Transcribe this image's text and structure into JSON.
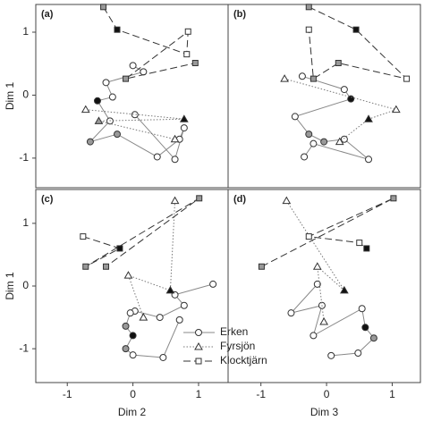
{
  "chart_data": [
    {
      "type": "line",
      "label": "(a)",
      "ylabel": "Dim 1",
      "xlim": [
        -1.48,
        1.45
      ],
      "ylim": [
        -1.47,
        1.44
      ],
      "yticks": [
        -1,
        0,
        1
      ],
      "series": [
        {
          "color": "#888888",
          "marker": "circle",
          "dash": "solid",
          "x": [
            0,
            0.16,
            -0.41,
            -0.31,
            -0.54,
            -0.35,
            -0.65,
            -0.24,
            0.37,
            0.71,
            0.78,
            0.64,
            0.03
          ],
          "values": [
            0.47,
            0.37,
            0.2,
            -0.03,
            -0.09,
            -0.41,
            -0.74,
            -0.62,
            -0.98,
            -0.7,
            -0.52,
            -1.02,
            -0.31
          ],
          "point_fills": [
            "#fff",
            "#fff",
            "#fff",
            "#fff",
            "#111",
            "#fff",
            "#999",
            "#999",
            "#fff",
            "#fff",
            "#fff",
            "#fff",
            "#fff"
          ]
        },
        {
          "color": "#777777",
          "marker": "triangle",
          "dash": "dotted",
          "x": [
            -0.72,
            0.78,
            -0.52,
            0.64
          ],
          "values": [
            -0.23,
            -0.38,
            -0.41,
            -0.7
          ],
          "point_fills": [
            "#fff",
            "#111",
            "#999",
            "#fff"
          ]
        },
        {
          "color": "#333333",
          "marker": "square",
          "dash": "dashed",
          "x": [
            -0.45,
            -0.24,
            0.82,
            0.84,
            -0.11,
            0.95
          ],
          "values": [
            1.4,
            1.04,
            0.65,
            1.01,
            0.26,
            0.51
          ],
          "point_fills": [
            "#999",
            "#111",
            "#fff",
            "#fff",
            "#999",
            "#999"
          ]
        }
      ]
    },
    {
      "type": "line",
      "label": "(b)",
      "xlim": [
        -1.5,
        1.43
      ],
      "ylim": [
        -1.47,
        1.44
      ],
      "series": [
        {
          "color": "#888888",
          "marker": "circle",
          "dash": "solid",
          "x": [
            -0.37,
            0.27,
            0.37,
            -0.48,
            -0.27,
            -0.04,
            0.27,
            0.64,
            -0.2,
            -0.34
          ],
          "values": [
            0.3,
            0.09,
            -0.06,
            -0.34,
            -0.62,
            -0.74,
            -0.7,
            -1.02,
            -0.77,
            -0.98
          ],
          "point_fills": [
            "#fff",
            "#fff",
            "#111",
            "#fff",
            "#999",
            "#999",
            "#fff",
            "#fff",
            "#fff",
            "#fff"
          ]
        },
        {
          "color": "#777777",
          "marker": "triangle",
          "dash": "dotted",
          "x": [
            -0.64,
            1.06,
            0.64,
            0.2
          ],
          "values": [
            0.26,
            -0.23,
            -0.38,
            -0.74
          ],
          "point_fills": [
            "#fff",
            "#fff",
            "#111",
            "#fff"
          ]
        },
        {
          "color": "#333333",
          "marker": "square",
          "dash": "dashed",
          "x": [
            -0.27,
            0.45,
            1.22,
            0.18,
            -0.2,
            -0.27
          ],
          "values": [
            1.4,
            1.04,
            0.26,
            0.51,
            0.26,
            1.04
          ],
          "point_fills": [
            "#999",
            "#111",
            "#fff",
            "#999",
            "#999",
            "#fff"
          ]
        }
      ]
    },
    {
      "type": "line",
      "label": "(c)",
      "ylabel": "Dim 1",
      "xlabel": "Dim 2",
      "xlim": [
        -1.48,
        1.45
      ],
      "ylim": [
        -1.54,
        1.54
      ],
      "xticks": [
        -1,
        0,
        1
      ],
      "yticks": [
        -1,
        0,
        1
      ],
      "series": [
        {
          "name": "Erken",
          "color": "#888888",
          "marker": "circle",
          "dash": "solid",
          "x": [
            1.22,
            0.64,
            0.78,
            0.41,
            0.03,
            -0.04,
            -0.11,
            0,
            -0.11,
            0,
            0.46,
            0.71
          ],
          "values": [
            0.03,
            -0.14,
            -0.31,
            -0.5,
            -0.4,
            -0.43,
            -0.64,
            -0.79,
            -1.0,
            -1.1,
            -1.14,
            -0.54
          ],
          "point_fills": [
            "#fff",
            "#fff",
            "#fff",
            "#fff",
            "#fff",
            "#fff",
            "#999",
            "#111",
            "#999",
            "#fff",
            "#fff",
            "#fff"
          ]
        },
        {
          "name": "Fyrsjön",
          "color": "#777777",
          "marker": "triangle",
          "dash": "dotted",
          "x": [
            0.64,
            0.57,
            -0.07,
            0.16
          ],
          "values": [
            1.36,
            -0.07,
            0.17,
            -0.5
          ],
          "point_fills": [
            "#fff",
            "#111",
            "#fff",
            "#fff"
          ]
        },
        {
          "name": "Klocktjärn",
          "color": "#333333",
          "marker": "square",
          "dash": "dashed",
          "x": [
            -0.76,
            -0.2,
            -0.72,
            1.01,
            -0.41
          ],
          "values": [
            0.79,
            0.6,
            0.31,
            1.4,
            0.31
          ],
          "point_fills": [
            "#fff",
            "#111",
            "#999",
            "#999",
            "#999"
          ]
        }
      ]
    },
    {
      "type": "line",
      "label": "(d)",
      "xlabel": "Dim 3",
      "xlim": [
        -1.5,
        1.43
      ],
      "ylim": [
        -1.54,
        1.54
      ],
      "xticks": [
        -1,
        0,
        1
      ],
      "series": [
        {
          "color": "#888888",
          "marker": "circle",
          "dash": "solid",
          "x": [
            -0.14,
            -0.54,
            -0.07,
            -0.2,
            0.54,
            0.59,
            0.72,
            0.48,
            0.07
          ],
          "values": [
            0.03,
            -0.43,
            -0.31,
            -0.79,
            -0.36,
            -0.66,
            -0.83,
            -1.07,
            -1.11
          ],
          "point_fills": [
            "#fff",
            "#fff",
            "#fff",
            "#fff",
            "#fff",
            "#111",
            "#999",
            "#fff",
            "#fff"
          ]
        },
        {
          "color": "#777777",
          "marker": "triangle",
          "dash": "dotted",
          "x": [
            -0.61,
            0.27,
            -0.14,
            -0.04
          ],
          "values": [
            1.36,
            -0.07,
            0.31,
            -0.57
          ],
          "point_fills": [
            "#fff",
            "#111",
            "#fff",
            "#fff"
          ]
        },
        {
          "color": "#333333",
          "marker": "square",
          "dash": "dashed",
          "x": [
            -0.99,
            1.02,
            -0.27,
            0.5,
            0.61
          ],
          "values": [
            0.31,
            1.4,
            0.79,
            0.69,
            0.6
          ],
          "point_fills": [
            "#999",
            "#999",
            "#fff",
            "#fff",
            "#111"
          ]
        }
      ]
    }
  ]
}
